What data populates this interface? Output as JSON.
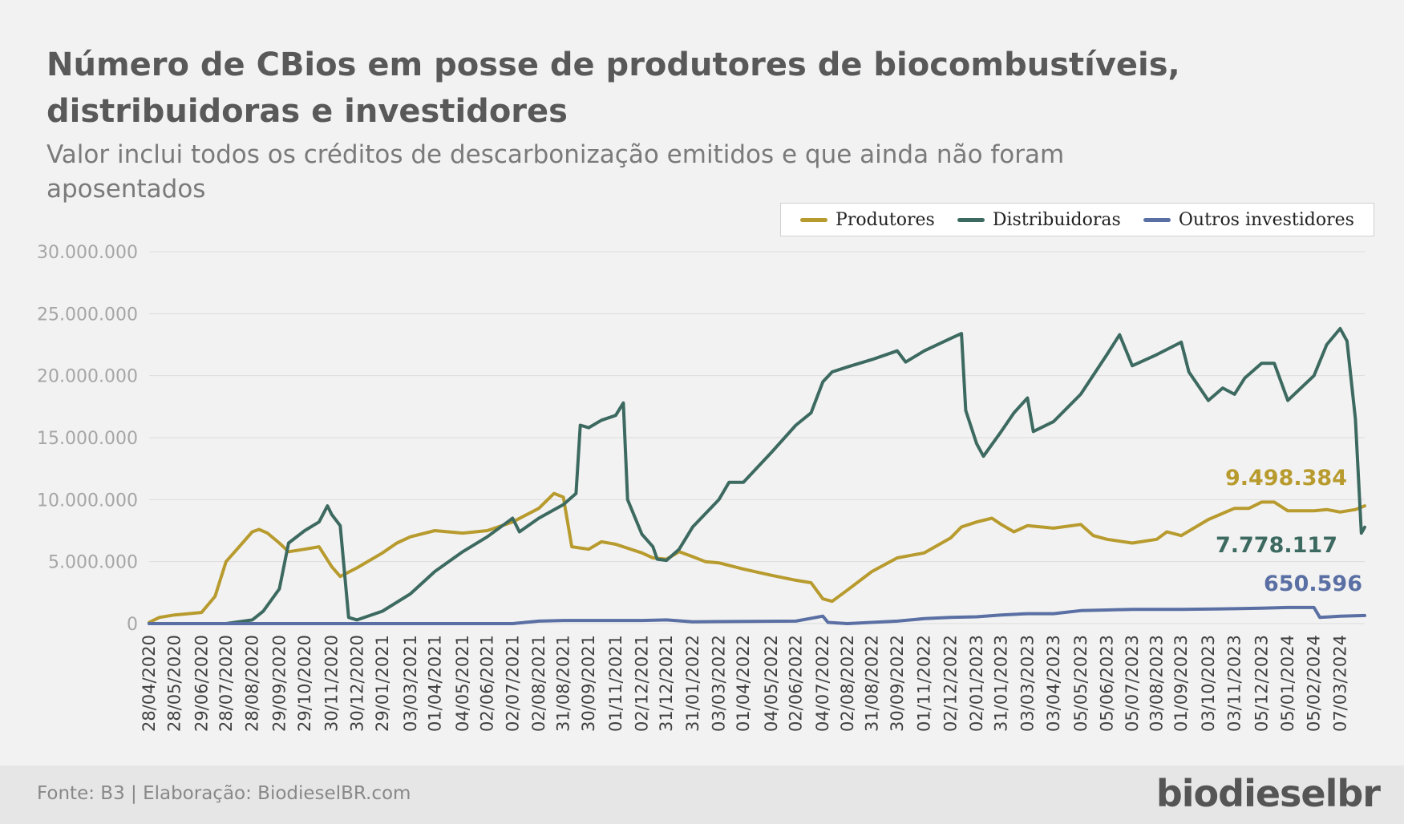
{
  "header": {
    "title": "Número de CBios em posse de produtores de biocombustíveis, distribuidoras e investidores",
    "subtitle": "Valor inclui todos os créditos de descarbonização emitidos e que ainda não foram aposentados"
  },
  "footer": {
    "source": "Fonte: B3 | Elaboração: BiodieselBR.com",
    "logo": "biodieselbr"
  },
  "chart_data": {
    "type": "line",
    "title": "Número de CBios em posse de produtores de biocombustíveis, distribuidoras e investidores",
    "subtitle": "Valor inclui todos os créditos de descarbonização emitidos e que ainda não foram aposentados",
    "xlabel": "",
    "ylabel": "",
    "ylim": [
      0,
      30000000
    ],
    "yticks": [
      "0",
      "5.000.000",
      "10.000.000",
      "15.000.000",
      "20.000.000",
      "25.000.000",
      "30.000.000"
    ],
    "ytick_values": [
      0,
      5000000,
      10000000,
      15000000,
      20000000,
      25000000,
      30000000
    ],
    "grid": true,
    "legend_position": "top-right",
    "x_range": [
      "2020-04-28",
      "2024-04-05"
    ],
    "x_ticks": [
      "28/04/2020",
      "28/05/2020",
      "29/06/2020",
      "28/07/2020",
      "28/08/2020",
      "29/09/2020",
      "29/10/2020",
      "30/11/2020",
      "30/12/2020",
      "29/01/2021",
      "03/03/2021",
      "01/04/2021",
      "04/05/2021",
      "02/06/2021",
      "02/07/2021",
      "02/08/2021",
      "31/08/2021",
      "30/09/2021",
      "01/11/2021",
      "02/12/2021",
      "31/12/2021",
      "31/01/2022",
      "03/03/2022",
      "01/04/2022",
      "04/05/2022",
      "02/06/2022",
      "04/07/2022",
      "02/08/2022",
      "31/08/2022",
      "30/09/2022",
      "01/11/2022",
      "02/12/2022",
      "02/01/2023",
      "31/01/2023",
      "03/03/2023",
      "03/04/2023",
      "05/05/2023",
      "05/06/2023",
      "05/07/2023",
      "03/08/2023",
      "01/09/2023",
      "03/10/2023",
      "03/11/2023",
      "05/12/2023",
      "05/01/2024",
      "05/02/2024",
      "07/03/2024"
    ],
    "series": [
      {
        "name": "Produtores",
        "color": "#b89b2e",
        "end_label": "9.498.384",
        "points": [
          [
            "28/04/2020",
            100000
          ],
          [
            "10/05/2020",
            500000
          ],
          [
            "28/05/2020",
            700000
          ],
          [
            "29/06/2020",
            900000
          ],
          [
            "15/07/2020",
            2200000
          ],
          [
            "28/07/2020",
            5000000
          ],
          [
            "10/08/2020",
            6000000
          ],
          [
            "28/08/2020",
            7400000
          ],
          [
            "05/09/2020",
            7600000
          ],
          [
            "15/09/2020",
            7300000
          ],
          [
            "29/09/2020",
            6500000
          ],
          [
            "10/10/2020",
            5800000
          ],
          [
            "29/10/2020",
            6000000
          ],
          [
            "15/11/2020",
            6200000
          ],
          [
            "30/11/2020",
            4600000
          ],
          [
            "10/12/2020",
            3800000
          ],
          [
            "30/12/2020",
            4500000
          ],
          [
            "29/01/2021",
            5700000
          ],
          [
            "15/02/2021",
            6500000
          ],
          [
            "03/03/2021",
            7000000
          ],
          [
            "01/04/2021",
            7500000
          ],
          [
            "04/05/2021",
            7300000
          ],
          [
            "02/06/2021",
            7500000
          ],
          [
            "02/07/2021",
            8200000
          ],
          [
            "02/08/2021",
            9300000
          ],
          [
            "20/08/2021",
            10500000
          ],
          [
            "31/08/2021",
            10200000
          ],
          [
            "10/09/2021",
            6200000
          ],
          [
            "30/09/2021",
            6000000
          ],
          [
            "15/10/2021",
            6600000
          ],
          [
            "01/11/2021",
            6400000
          ],
          [
            "02/12/2021",
            5700000
          ],
          [
            "15/12/2021",
            5300000
          ],
          [
            "31/12/2021",
            5200000
          ],
          [
            "15/01/2022",
            5800000
          ],
          [
            "31/01/2022",
            5400000
          ],
          [
            "15/02/2022",
            5000000
          ],
          [
            "03/03/2022",
            4900000
          ],
          [
            "01/04/2022",
            4400000
          ],
          [
            "04/05/2022",
            3900000
          ],
          [
            "02/06/2022",
            3500000
          ],
          [
            "20/06/2022",
            3300000
          ],
          [
            "04/07/2022",
            2000000
          ],
          [
            "15/07/2022",
            1800000
          ],
          [
            "02/08/2022",
            2700000
          ],
          [
            "31/08/2022",
            4200000
          ],
          [
            "30/09/2022",
            5300000
          ],
          [
            "01/11/2022",
            5700000
          ],
          [
            "02/12/2022",
            6900000
          ],
          [
            "15/12/2022",
            7800000
          ],
          [
            "02/01/2023",
            8200000
          ],
          [
            "20/01/2023",
            8500000
          ],
          [
            "31/01/2023",
            8000000
          ],
          [
            "15/02/2023",
            7400000
          ],
          [
            "03/03/2023",
            7900000
          ],
          [
            "03/04/2023",
            7700000
          ],
          [
            "05/05/2023",
            8000000
          ],
          [
            "20/05/2023",
            7100000
          ],
          [
            "05/06/2023",
            6800000
          ],
          [
            "05/07/2023",
            6500000
          ],
          [
            "03/08/2023",
            6800000
          ],
          [
            "15/08/2023",
            7400000
          ],
          [
            "01/09/2023",
            7100000
          ],
          [
            "03/10/2023",
            8400000
          ],
          [
            "03/11/2023",
            9300000
          ],
          [
            "20/11/2023",
            9300000
          ],
          [
            "05/12/2023",
            9800000
          ],
          [
            "20/12/2023",
            9800000
          ],
          [
            "05/01/2024",
            9100000
          ],
          [
            "05/02/2024",
            9100000
          ],
          [
            "20/02/2024",
            9200000
          ],
          [
            "07/03/2024",
            9000000
          ],
          [
            "25/03/2024",
            9200000
          ],
          [
            "05/04/2024",
            9498384
          ]
        ]
      },
      {
        "name": "Distribuidoras",
        "color": "#3d6a60",
        "end_label": "7.778.117",
        "points": [
          [
            "28/04/2020",
            0
          ],
          [
            "28/07/2020",
            0
          ],
          [
            "28/08/2020",
            300000
          ],
          [
            "10/09/2020",
            1000000
          ],
          [
            "29/09/2020",
            2800000
          ],
          [
            "10/10/2020",
            6500000
          ],
          [
            "29/10/2020",
            7500000
          ],
          [
            "15/11/2020",
            8200000
          ],
          [
            "25/11/2020",
            9500000
          ],
          [
            "30/11/2020",
            8800000
          ],
          [
            "10/12/2020",
            7900000
          ],
          [
            "20/12/2020",
            500000
          ],
          [
            "30/12/2020",
            300000
          ],
          [
            "29/01/2021",
            1000000
          ],
          [
            "03/03/2021",
            2400000
          ],
          [
            "01/04/2021",
            4200000
          ],
          [
            "04/05/2021",
            5800000
          ],
          [
            "02/06/2021",
            7000000
          ],
          [
            "02/07/2021",
            8500000
          ],
          [
            "10/07/2021",
            7400000
          ],
          [
            "02/08/2021",
            8500000
          ],
          [
            "31/08/2021",
            9600000
          ],
          [
            "15/09/2021",
            10500000
          ],
          [
            "20/09/2021",
            16000000
          ],
          [
            "30/09/2021",
            15800000
          ],
          [
            "15/10/2021",
            16400000
          ],
          [
            "01/11/2021",
            16800000
          ],
          [
            "10/11/2021",
            17800000
          ],
          [
            "15/11/2021",
            10000000
          ],
          [
            "02/12/2021",
            7200000
          ],
          [
            "15/12/2021",
            6200000
          ],
          [
            "20/12/2021",
            5200000
          ],
          [
            "31/12/2021",
            5100000
          ],
          [
            "15/01/2022",
            6000000
          ],
          [
            "31/01/2022",
            7800000
          ],
          [
            "03/03/2022",
            10000000
          ],
          [
            "15/03/2022",
            11400000
          ],
          [
            "01/04/2022",
            11400000
          ],
          [
            "04/05/2022",
            13800000
          ],
          [
            "02/06/2022",
            16000000
          ],
          [
            "20/06/2022",
            17000000
          ],
          [
            "04/07/2022",
            19500000
          ],
          [
            "15/07/2022",
            20300000
          ],
          [
            "02/08/2022",
            20700000
          ],
          [
            "31/08/2022",
            21300000
          ],
          [
            "30/09/2022",
            22000000
          ],
          [
            "10/10/2022",
            21100000
          ],
          [
            "01/11/2022",
            22000000
          ],
          [
            "02/12/2022",
            23000000
          ],
          [
            "15/12/2022",
            23400000
          ],
          [
            "20/12/2022",
            17200000
          ],
          [
            "02/01/2023",
            14500000
          ],
          [
            "10/01/2023",
            13500000
          ],
          [
            "31/01/2023",
            15500000
          ],
          [
            "15/02/2023",
            17000000
          ],
          [
            "03/03/2023",
            18200000
          ],
          [
            "10/03/2023",
            15500000
          ],
          [
            "03/04/2023",
            16300000
          ],
          [
            "05/05/2023",
            18500000
          ],
          [
            "05/06/2023",
            21700000
          ],
          [
            "20/06/2023",
            23300000
          ],
          [
            "05/07/2023",
            20800000
          ],
          [
            "03/08/2023",
            21700000
          ],
          [
            "01/09/2023",
            22700000
          ],
          [
            "10/09/2023",
            20300000
          ],
          [
            "03/10/2023",
            18000000
          ],
          [
            "20/10/2023",
            19000000
          ],
          [
            "03/11/2023",
            18500000
          ],
          [
            "15/11/2023",
            19800000
          ],
          [
            "05/12/2023",
            21000000
          ],
          [
            "20/12/2023",
            21000000
          ],
          [
            "05/01/2024",
            18000000
          ],
          [
            "05/02/2024",
            20000000
          ],
          [
            "20/02/2024",
            22500000
          ],
          [
            "07/03/2024",
            23800000
          ],
          [
            "15/03/2024",
            22800000
          ],
          [
            "25/03/2024",
            16500000
          ],
          [
            "01/04/2024",
            7300000
          ],
          [
            "05/04/2024",
            7778117
          ]
        ]
      },
      {
        "name": "Outros investidores",
        "color": "#5a6fa3",
        "end_label": "650.596",
        "points": [
          [
            "28/04/2020",
            0
          ],
          [
            "02/07/2021",
            0
          ],
          [
            "02/08/2021",
            200000
          ],
          [
            "31/08/2021",
            250000
          ],
          [
            "02/12/2021",
            250000
          ],
          [
            "31/12/2021",
            300000
          ],
          [
            "31/01/2022",
            150000
          ],
          [
            "02/06/2022",
            200000
          ],
          [
            "04/07/2022",
            600000
          ],
          [
            "10/07/2022",
            100000
          ],
          [
            "02/08/2022",
            0
          ],
          [
            "30/09/2022",
            200000
          ],
          [
            "01/11/2022",
            400000
          ],
          [
            "02/12/2022",
            500000
          ],
          [
            "02/01/2023",
            550000
          ],
          [
            "31/01/2023",
            700000
          ],
          [
            "03/03/2023",
            800000
          ],
          [
            "03/04/2023",
            800000
          ],
          [
            "05/05/2023",
            1050000
          ],
          [
            "05/06/2023",
            1100000
          ],
          [
            "05/07/2023",
            1150000
          ],
          [
            "01/09/2023",
            1150000
          ],
          [
            "03/11/2023",
            1200000
          ],
          [
            "05/12/2023",
            1250000
          ],
          [
            "05/01/2024",
            1300000
          ],
          [
            "05/02/2024",
            1300000
          ],
          [
            "12/02/2024",
            500000
          ],
          [
            "07/03/2024",
            600000
          ],
          [
            "05/04/2024",
            650596
          ]
        ]
      }
    ]
  }
}
